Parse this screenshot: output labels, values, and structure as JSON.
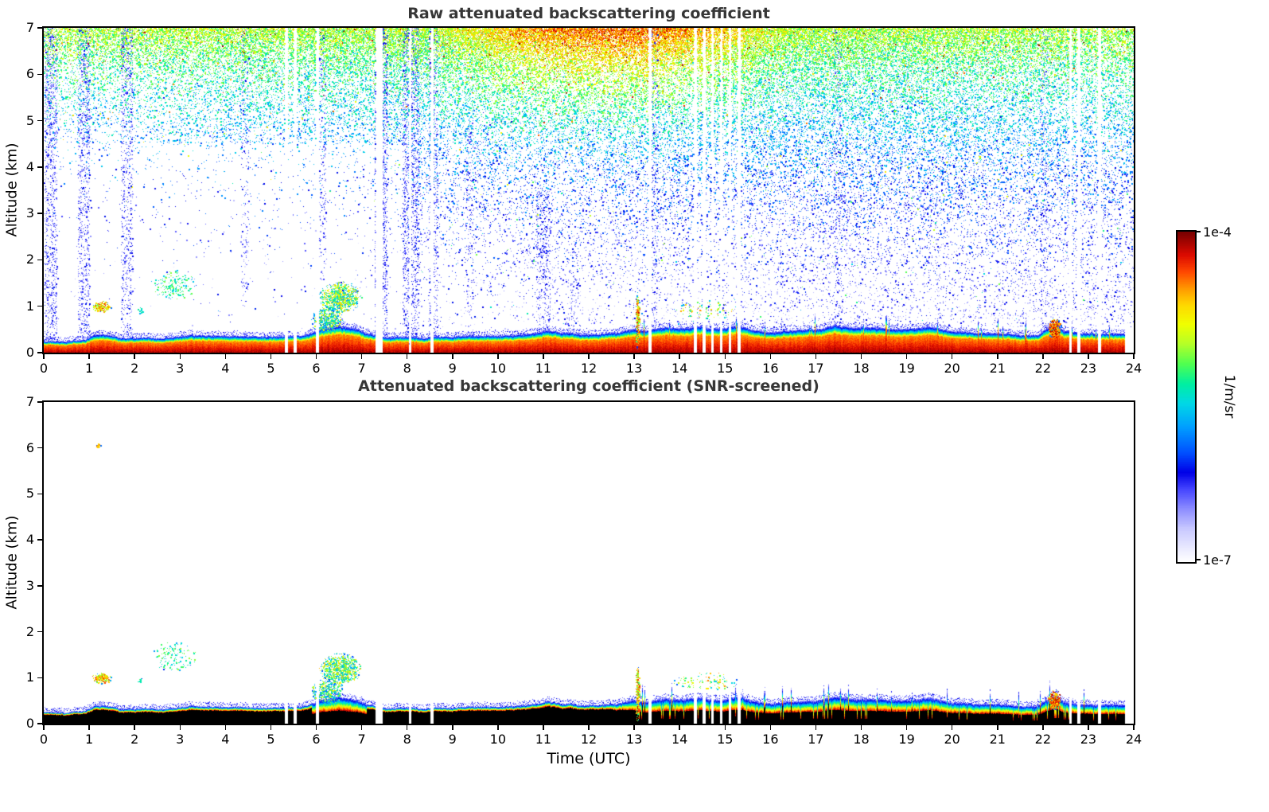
{
  "panels": {
    "raw": {
      "title": "Raw attenuated backscattering coefficient",
      "ylabel": "Altitude (km)"
    },
    "screened": {
      "title": "Attenuated backscattering coefficient (SNR-screened)",
      "ylabel": "Altitude (km)",
      "xlabel": "Time (UTC)"
    }
  },
  "colorbar": {
    "max_label": "1e-4",
    "min_label": "1e-7",
    "unit_label": "1/m/sr"
  },
  "axes": {
    "x_ticks": [
      0,
      1,
      2,
      3,
      4,
      5,
      6,
      7,
      8,
      9,
      10,
      11,
      12,
      13,
      14,
      15,
      16,
      17,
      18,
      19,
      20,
      21,
      22,
      23,
      24
    ],
    "y_ticks": [
      0,
      1,
      2,
      3,
      4,
      5,
      6,
      7
    ]
  },
  "chart_data": {
    "type": "heatmap",
    "panels": [
      {
        "id": "raw",
        "title": "Raw attenuated backscattering coefficient"
      },
      {
        "id": "screened",
        "title": "Attenuated backscattering coefficient (SNR-screened)"
      }
    ],
    "x": {
      "label": "Time (UTC)",
      "range": [
        0,
        24
      ],
      "ticks": [
        0,
        1,
        2,
        3,
        4,
        5,
        6,
        7,
        8,
        9,
        10,
        11,
        12,
        13,
        14,
        15,
        16,
        17,
        18,
        19,
        20,
        21,
        22,
        23,
        24
      ]
    },
    "y": {
      "label": "Altitude (km)",
      "range": [
        0,
        7
      ],
      "ticks": [
        0,
        1,
        2,
        3,
        4,
        5,
        6,
        7
      ]
    },
    "colorbar": {
      "scale": "log",
      "min": 1e-07,
      "max": 0.0001,
      "min_label": "1e-7",
      "max_label": "1e-4",
      "units": "1/m/sr"
    },
    "colormap_stops": [
      [
        0.0,
        "#ffffff"
      ],
      [
        0.04,
        "#ebebff"
      ],
      [
        0.1,
        "#c8c8ff"
      ],
      [
        0.16,
        "#8c8cff"
      ],
      [
        0.22,
        "#4444ff"
      ],
      [
        0.27,
        "#0000e6"
      ],
      [
        0.33,
        "#0050ff"
      ],
      [
        0.41,
        "#00a0ff"
      ],
      [
        0.48,
        "#00d8e6"
      ],
      [
        0.54,
        "#00f0a0"
      ],
      [
        0.6,
        "#50ff50"
      ],
      [
        0.66,
        "#b4ff28"
      ],
      [
        0.72,
        "#f0ff00"
      ],
      [
        0.78,
        "#ffd700"
      ],
      [
        0.83,
        "#ff9600"
      ],
      [
        0.88,
        "#ff4600"
      ],
      [
        0.93,
        "#dc0a00"
      ],
      [
        1.0,
        "#780000"
      ]
    ],
    "band_end_hour": 23.8,
    "surface_layer_top_km": [
      [
        0,
        0.26
      ],
      [
        0.5,
        0.26
      ],
      [
        0.9,
        0.3
      ],
      [
        1.1,
        0.42
      ],
      [
        1.4,
        0.38
      ],
      [
        1.7,
        0.3
      ],
      [
        2,
        0.28
      ],
      [
        2.6,
        0.3
      ],
      [
        3.2,
        0.34
      ],
      [
        4,
        0.32
      ],
      [
        5,
        0.33
      ],
      [
        5.8,
        0.38
      ],
      [
        6.1,
        0.5
      ],
      [
        6.5,
        0.55
      ],
      [
        6.9,
        0.5
      ],
      [
        7.1,
        0.38
      ],
      [
        7.5,
        0.3
      ],
      [
        8,
        0.32
      ],
      [
        9,
        0.32
      ],
      [
        10,
        0.33
      ],
      [
        10.8,
        0.4
      ],
      [
        11.1,
        0.45
      ],
      [
        11.4,
        0.4
      ],
      [
        12,
        0.36
      ],
      [
        12.7,
        0.42
      ],
      [
        13,
        0.5
      ],
      [
        13.3,
        0.48
      ],
      [
        13.7,
        0.52
      ],
      [
        14,
        0.5
      ],
      [
        14.4,
        0.55
      ],
      [
        15,
        0.5
      ],
      [
        15.3,
        0.55
      ],
      [
        15.6,
        0.45
      ],
      [
        16,
        0.42
      ],
      [
        16.5,
        0.45
      ],
      [
        17,
        0.47
      ],
      [
        17.4,
        0.55
      ],
      [
        17.8,
        0.5
      ],
      [
        18.3,
        0.52
      ],
      [
        19,
        0.5
      ],
      [
        19.5,
        0.52
      ],
      [
        20,
        0.46
      ],
      [
        20.5,
        0.45
      ],
      [
        21,
        0.46
      ],
      [
        21.5,
        0.42
      ],
      [
        21.9,
        0.44
      ],
      [
        22.15,
        0.62
      ],
      [
        22.3,
        0.68
      ],
      [
        22.45,
        0.5
      ],
      [
        22.8,
        0.46
      ],
      [
        23.2,
        0.45
      ],
      [
        23.6,
        0.46
      ],
      [
        24,
        0.44
      ]
    ],
    "clouds": [
      {
        "t0": 1.05,
        "t1": 1.5,
        "a0": 0.88,
        "a1": 1.12,
        "density": 0.75,
        "v0": 0.6,
        "v1": 0.92,
        "panels": "both"
      },
      {
        "t0": 2.05,
        "t1": 2.2,
        "a0": 0.85,
        "a1": 1.0,
        "density": 0.25,
        "v0": 0.45,
        "v1": 0.6,
        "panels": "both"
      },
      {
        "t0": 2.35,
        "t1": 3.35,
        "a0": 1.15,
        "a1": 1.8,
        "density": 0.14,
        "v0": 0.45,
        "v1": 0.65,
        "panels": "both"
      },
      {
        "t0": 5.88,
        "t1": 6.6,
        "a0": 0.42,
        "a1": 1.0,
        "density": 0.5,
        "v0": 0.35,
        "v1": 0.75,
        "panels": "both"
      },
      {
        "t0": 6.05,
        "t1": 7.0,
        "a0": 0.85,
        "a1": 1.55,
        "density": 0.55,
        "v0": 0.4,
        "v1": 0.8,
        "panels": "both"
      },
      {
        "t0": 13.02,
        "t1": 13.12,
        "a0": 0.0,
        "a1": 1.35,
        "density": 0.8,
        "v0": 0.55,
        "v1": 0.95,
        "panels": "both"
      },
      {
        "t0": 13.85,
        "t1": 15.35,
        "a0": 0.72,
        "a1": 1.15,
        "density": 0.12,
        "v0": 0.45,
        "v1": 0.85,
        "panels": "both"
      },
      {
        "t0": 22.1,
        "t1": 22.4,
        "a0": 0.3,
        "a1": 0.75,
        "density": 0.8,
        "v0": 0.75,
        "v1": 0.98,
        "panels": "both"
      },
      {
        "t0": 1.15,
        "t1": 1.25,
        "a0": 6.0,
        "a1": 6.1,
        "density": 0.9,
        "v0": 0.75,
        "v1": 0.85,
        "panels": "screened"
      }
    ],
    "gaps": [
      [
        5.3,
        5.37
      ],
      [
        5.5,
        5.56
      ],
      [
        5.99,
        6.05
      ],
      [
        7.3,
        7.45
      ],
      [
        8.03,
        8.09
      ],
      [
        8.5,
        8.57
      ],
      [
        13.3,
        13.37
      ],
      [
        14.3,
        14.37
      ],
      [
        14.5,
        14.56
      ],
      [
        14.69,
        14.75
      ],
      [
        14.88,
        14.94
      ],
      [
        15.07,
        15.13
      ],
      [
        15.27,
        15.33
      ],
      [
        22.57,
        22.63
      ],
      [
        22.75,
        22.81
      ],
      [
        23.2,
        23.28
      ]
    ],
    "noise_streaks": [
      [
        0.02,
        0.28,
        0,
        7,
        0.3
      ],
      [
        0.75,
        1.0,
        0,
        7,
        0.28
      ],
      [
        1.7,
        1.95,
        0.4,
        7,
        0.22
      ],
      [
        4.35,
        4.5,
        1,
        7,
        0.1
      ],
      [
        6.06,
        6.2,
        1.5,
        7,
        0.15
      ],
      [
        7.28,
        7.55,
        0,
        7,
        0.4
      ],
      [
        7.9,
        8.25,
        0,
        7,
        0.3
      ],
      [
        8.48,
        8.65,
        0,
        7,
        0.25
      ],
      [
        9.3,
        9.45,
        0,
        5,
        0.12
      ],
      [
        10.85,
        11.15,
        0.3,
        3.5,
        0.25
      ],
      [
        11.55,
        11.75,
        0.3,
        2.5,
        0.12
      ],
      [
        13.38,
        13.5,
        0,
        7,
        0.15
      ],
      [
        17.4,
        17.55,
        0,
        7,
        0.1
      ],
      [
        21.95,
        22.1,
        0,
        7,
        0.1
      ]
    ],
    "background_noise": {
      "seed_raw": 42,
      "seed_screened": 99,
      "base_amplitude": 0.5,
      "diurnal_amplitude": 0.3,
      "scale_height_km_start": 1.45,
      "scale_height_km_growth": 1.5,
      "early_hours_limit": 8,
      "early_suppression_below_km": 4.5,
      "early_suppression_factor": 0.3,
      "midday_t0": 8.5,
      "midday_t1": 16.5,
      "midday_value_boost": 0.2
    }
  }
}
